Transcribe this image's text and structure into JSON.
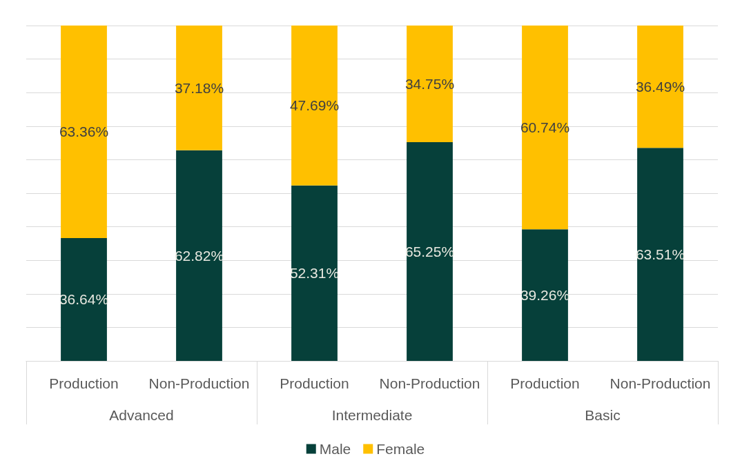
{
  "chart_data": {
    "type": "bar",
    "stacked": true,
    "categories": [
      "Production",
      "Non-Production",
      "Production",
      "Non-Production",
      "Production",
      "Non-Production"
    ],
    "annotations": [
      "Advanced",
      "Intermediate",
      "Basic"
    ],
    "series": [
      {
        "name": "Male",
        "color": "#06403a",
        "values": [
          36.64,
          62.82,
          52.31,
          65.25,
          39.26,
          63.51
        ],
        "value_labels": [
          "36.64%",
          "62.82%",
          "52.31%",
          "65.25%",
          "39.26%",
          "63.51%"
        ]
      },
      {
        "name": "Female",
        "color": "#ffc000",
        "values": [
          63.36,
          37.18,
          47.69,
          34.75,
          60.74,
          36.49
        ],
        "value_labels": [
          "63.36%",
          "37.18%",
          "47.69%",
          "34.75%",
          "60.74%",
          "36.49%"
        ]
      }
    ],
    "ylim": [
      0,
      100
    ],
    "yticks": [
      {
        "value": 0,
        "label": null
      },
      {
        "value": 10,
        "label": null
      },
      {
        "value": 20,
        "label": null
      },
      {
        "value": 30,
        "label": null
      },
      {
        "value": 40,
        "label": null
      },
      {
        "value": 50,
        "label": null
      },
      {
        "value": 60,
        "label": null
      },
      {
        "value": 70,
        "label": null
      },
      {
        "value": 80,
        "label": null
      },
      {
        "value": 90,
        "label": null
      },
      {
        "value": 100,
        "label": null
      }
    ],
    "tick_labels": "x",
    "grid": "y",
    "legend": "bottom"
  }
}
